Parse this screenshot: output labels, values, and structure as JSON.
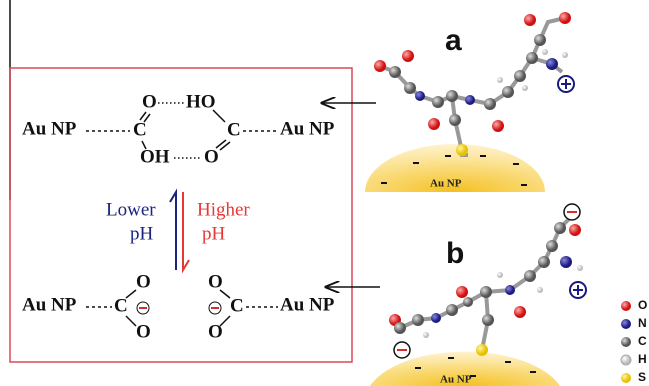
{
  "panels": [
    {
      "label": "a",
      "particle_label": "Au NP"
    },
    {
      "label": "b",
      "particle_label": "Au NP"
    }
  ],
  "scheme": {
    "top": {
      "left_np": "Au NP",
      "right_np": "Au NP",
      "left_c": "C",
      "right_c": "C",
      "upper_o": "O",
      "upper_ho": "HO",
      "lower_oh": "OH",
      "lower_o": "O"
    },
    "arrows": {
      "lower": [
        "Lower",
        "pH"
      ],
      "higher": [
        "Higher",
        "pH"
      ]
    },
    "bottom": {
      "left_np": "Au NP",
      "right_np": "Au NP",
      "left_c": "C",
      "right_c": "C",
      "left_o_top": "O",
      "left_o_bottom": "O",
      "right_o_top": "O",
      "right_o_bottom": "O"
    }
  },
  "legend": [
    "O",
    "N",
    "C",
    "H",
    "S"
  ]
}
